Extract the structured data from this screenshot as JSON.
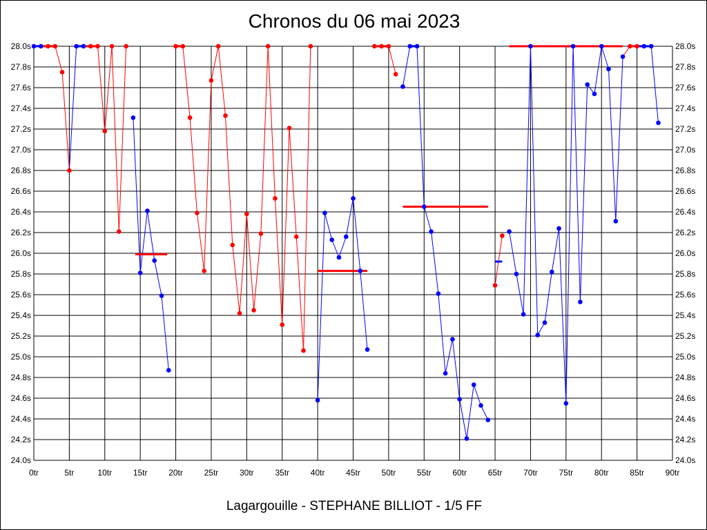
{
  "chart_data": {
    "type": "line",
    "title": "Chronos du 06 mai 2023",
    "xlabel": "Lagargouille - STEPHANE BILLIOT - 1/5 FF",
    "ylabel": "",
    "xlim": [
      0,
      90
    ],
    "ylim": [
      24.0,
      28.0
    ],
    "x_ticks": [
      "0tr",
      "5tr",
      "10tr",
      "15tr",
      "20tr",
      "25tr",
      "30tr",
      "35tr",
      "40tr",
      "45tr",
      "50tr",
      "55tr",
      "60tr",
      "65tr",
      "70tr",
      "75tr",
      "80tr",
      "85tr",
      "90tr"
    ],
    "y_ticks": [
      "24.0s",
      "24.2s",
      "24.4s",
      "24.6s",
      "24.8s",
      "25.0s",
      "25.2s",
      "25.4s",
      "25.6s",
      "25.8s",
      "26.0s",
      "26.2s",
      "26.4s",
      "26.6s",
      "26.8s",
      "27.0s",
      "27.2s",
      "27.4s",
      "27.6s",
      "27.8s",
      "28.0s"
    ],
    "grid": true,
    "colors": {
      "red": "#ff0000",
      "blue": "#0000ff",
      "grid": "#000000"
    },
    "segments": [
      {
        "points": [
          [
            0,
            28.0,
            "b"
          ],
          [
            1,
            28.0,
            "b"
          ],
          [
            2,
            28.0,
            "r"
          ],
          [
            3,
            28.0,
            "r"
          ],
          [
            4,
            27.75,
            "r"
          ],
          [
            5,
            26.8,
            "r"
          ],
          [
            6,
            28.0,
            "b"
          ],
          [
            7,
            28.0,
            "b"
          ],
          [
            8,
            28.0,
            "r"
          ],
          [
            9,
            28.0,
            "r"
          ],
          [
            10,
            27.18,
            "r"
          ],
          [
            11,
            28.0,
            "r"
          ],
          [
            12,
            26.21,
            "r"
          ],
          [
            13,
            28.0,
            "r"
          ]
        ]
      },
      {
        "points": [
          [
            14,
            27.31,
            "b"
          ],
          [
            15,
            25.81,
            "b"
          ],
          [
            16,
            26.41,
            "b"
          ],
          [
            17,
            25.93,
            "b"
          ],
          [
            18,
            25.59,
            "b"
          ],
          [
            19,
            24.87,
            "b"
          ]
        ]
      },
      {
        "points": [
          [
            20,
            28.0,
            "r"
          ],
          [
            21,
            28.0,
            "r"
          ],
          [
            22,
            27.31,
            "r"
          ],
          [
            23,
            26.39,
            "r"
          ],
          [
            24,
            25.83,
            "r"
          ],
          [
            25,
            27.67,
            "r"
          ],
          [
            26,
            28.0,
            "r"
          ],
          [
            27,
            27.33,
            "r"
          ],
          [
            28,
            26.08,
            "r"
          ],
          [
            29,
            25.42,
            "r"
          ],
          [
            30,
            26.38,
            "r"
          ],
          [
            31,
            25.45,
            "r"
          ],
          [
            32,
            26.19,
            "r"
          ],
          [
            33,
            28.0,
            "r"
          ],
          [
            34,
            26.53,
            "r"
          ],
          [
            35,
            25.31,
            "r"
          ],
          [
            36,
            27.21,
            "r"
          ],
          [
            37,
            26.16,
            "r"
          ],
          [
            38,
            25.06,
            "r"
          ],
          [
            39,
            28.0,
            "r"
          ]
        ]
      },
      {
        "points": [
          [
            40,
            24.58,
            "b"
          ],
          [
            41,
            26.39,
            "b"
          ],
          [
            42,
            26.13,
            "b"
          ],
          [
            43,
            25.96,
            "b"
          ],
          [
            44,
            26.16,
            "b"
          ],
          [
            45,
            26.53,
            "b"
          ],
          [
            46,
            25.83,
            "b"
          ],
          [
            47,
            25.07,
            "b"
          ]
        ]
      },
      {
        "points": [
          [
            48,
            28.0,
            "r"
          ],
          [
            49,
            28.0,
            "r"
          ],
          [
            50,
            28.0,
            "r"
          ],
          [
            51,
            27.73,
            "r"
          ]
        ]
      },
      {
        "points": [
          [
            52,
            27.61,
            "b"
          ],
          [
            53,
            28.0,
            "b"
          ],
          [
            54,
            28.0,
            "b"
          ],
          [
            55,
            26.45,
            "b"
          ],
          [
            56,
            26.21,
            "b"
          ],
          [
            57,
            25.61,
            "b"
          ],
          [
            58,
            24.84,
            "b"
          ],
          [
            59,
            25.17,
            "b"
          ],
          [
            60,
            24.59,
            "b"
          ],
          [
            61,
            24.21,
            "b"
          ],
          [
            62,
            24.73,
            "b"
          ],
          [
            63,
            24.53,
            "b"
          ],
          [
            64,
            24.39,
            "b"
          ]
        ]
      },
      {
        "points": [
          [
            65,
            25.69,
            "r"
          ],
          [
            66,
            26.17,
            "r"
          ]
        ]
      },
      {
        "points": [
          [
            67,
            26.21,
            "b"
          ],
          [
            68,
            25.8,
            "b"
          ],
          [
            69,
            25.41,
            "b"
          ],
          [
            70,
            28.0,
            "b"
          ],
          [
            71,
            25.21,
            "b"
          ],
          [
            72,
            25.33,
            "b"
          ],
          [
            73,
            25.82,
            "b"
          ],
          [
            74,
            26.24,
            "b"
          ],
          [
            75,
            24.55,
            "b"
          ],
          [
            76,
            28.0,
            "b"
          ],
          [
            77,
            25.53,
            "b"
          ],
          [
            78,
            27.63,
            "b"
          ],
          [
            79,
            27.54,
            "b"
          ],
          [
            80,
            28.0,
            "b"
          ],
          [
            81,
            27.78,
            "b"
          ],
          [
            82,
            26.31,
            "b"
          ],
          [
            83,
            27.9,
            "b"
          ],
          [
            84,
            28.0,
            "r"
          ],
          [
            85,
            28.0,
            "r"
          ],
          [
            86,
            28.0,
            "b"
          ],
          [
            87,
            28.0,
            "b"
          ],
          [
            88,
            27.26,
            "b"
          ]
        ]
      }
    ],
    "averages": [
      {
        "from": 14.3,
        "to": 18.8,
        "value": 25.99,
        "color": "r"
      },
      {
        "from": 40.0,
        "to": 47.0,
        "value": 25.83,
        "color": "r"
      },
      {
        "from": 52.0,
        "to": 64.0,
        "value": 26.45,
        "color": "r"
      },
      {
        "from": 65.0,
        "to": 66.0,
        "value": 25.92,
        "color": "b"
      },
      {
        "from": 67.0,
        "to": 83.0,
        "value": 28.0,
        "color": "r"
      }
    ]
  }
}
